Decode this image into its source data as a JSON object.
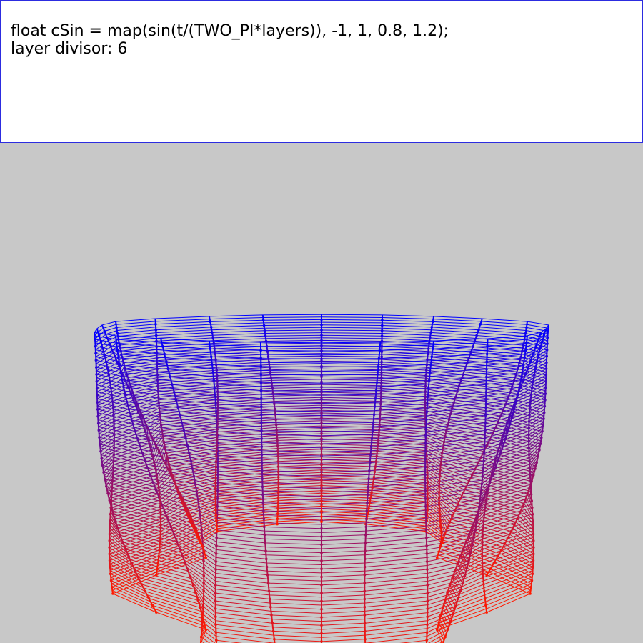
{
  "code_panel": {
    "line1": "float cSin = map(sin(t/(TWO_PI*layers)), -1, 1, 0.8, 1.2);",
    "line2": "layer divisor: 6"
  },
  "sketch": {
    "background": "#c8c8c8",
    "bottom_color": "#ff1a00",
    "top_color": "#0000ff"
  }
}
